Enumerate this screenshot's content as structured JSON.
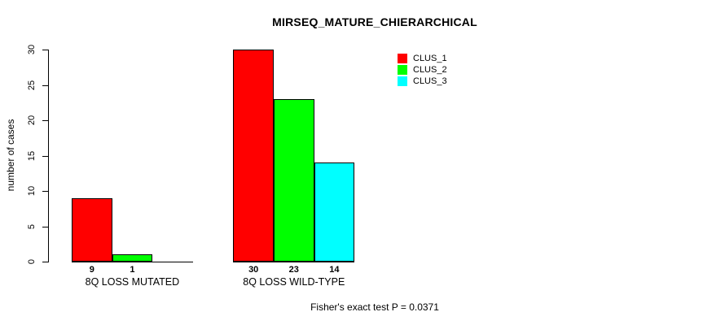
{
  "chart_data": {
    "type": "bar",
    "title": "MIRSEQ_MATURE_CHIERARCHICAL",
    "ylabel": "number of cases",
    "ylim": [
      0,
      30
    ],
    "yticks": [
      0,
      5,
      10,
      15,
      20,
      25,
      30
    ],
    "categories": [
      "8Q LOSS MUTATED",
      "8Q LOSS WILD-TYPE"
    ],
    "series": [
      {
        "name": "CLUS_1",
        "color": "#ff0000",
        "values": [
          9,
          30
        ]
      },
      {
        "name": "CLUS_2",
        "color": "#00ff00",
        "values": [
          1,
          23
        ]
      },
      {
        "name": "CLUS_3",
        "color": "#00ffff",
        "values": [
          0,
          14
        ]
      }
    ],
    "value_label_rule": "hide_zero",
    "grid": false,
    "legend_position": "top-right",
    "annotation": "Fisher's exact test P = 0.0371",
    "colors": {
      "axis": "#000000",
      "text": "#000000",
      "background": "#ffffff"
    }
  }
}
